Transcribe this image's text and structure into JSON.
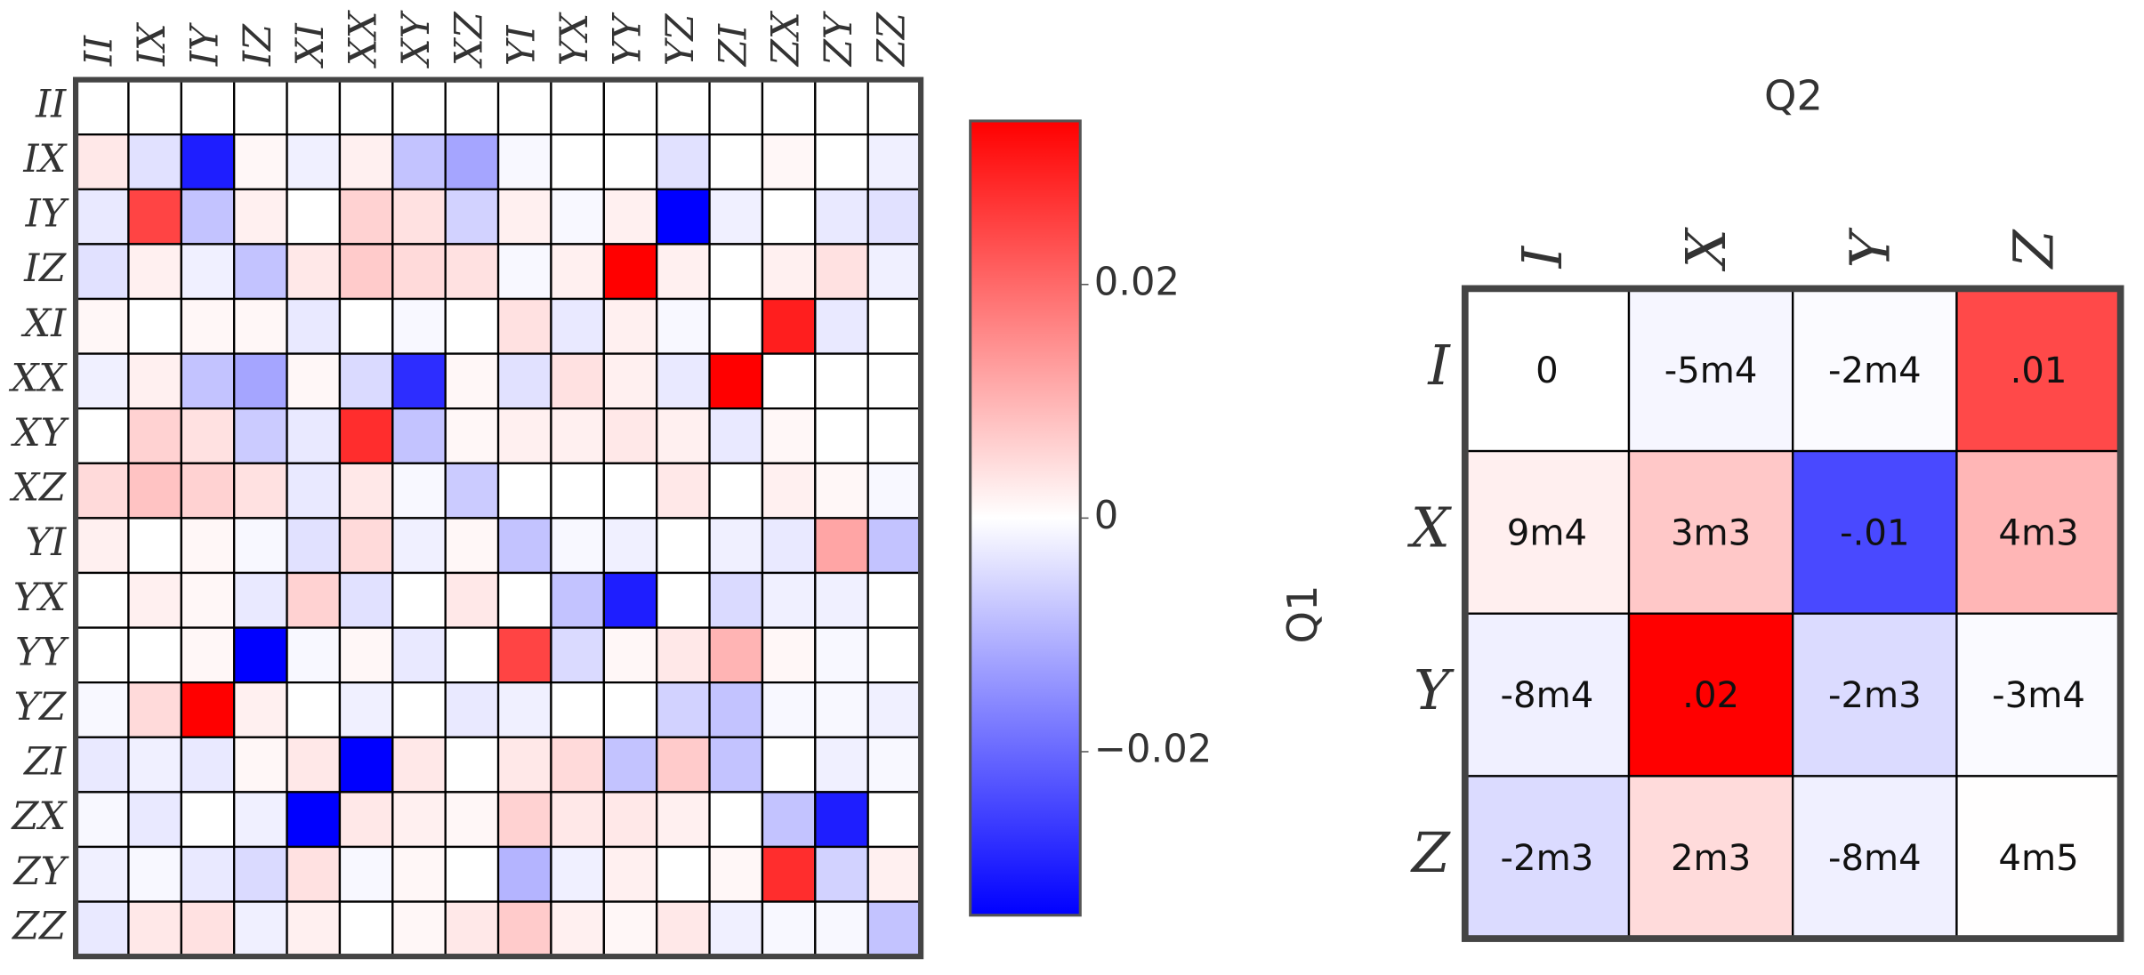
{
  "chart_data": [
    {
      "type": "heatmap",
      "x_categories": [
        "II",
        "IX",
        "IY",
        "IZ",
        "XI",
        "XX",
        "XY",
        "XZ",
        "YI",
        "YX",
        "YY",
        "YZ",
        "ZI",
        "ZX",
        "ZY",
        "ZZ"
      ],
      "y_categories": [
        "II",
        "IX",
        "IY",
        "IZ",
        "XI",
        "XX",
        "XY",
        "XZ",
        "YI",
        "YX",
        "YY",
        "YZ",
        "ZI",
        "ZX",
        "ZY",
        "ZZ"
      ],
      "values": [
        [
          0,
          0,
          0,
          0,
          0,
          0,
          0,
          0,
          0,
          0,
          0,
          0,
          0,
          0,
          0,
          0
        ],
        [
          0.003,
          -0.004,
          -0.03,
          0.001,
          -0.002,
          0.002,
          -0.008,
          -0.012,
          -0.001,
          0,
          0,
          -0.004,
          0,
          0.001,
          0,
          -0.002
        ],
        [
          -0.003,
          0.025,
          -0.008,
          0.002,
          0,
          0.006,
          0.004,
          -0.006,
          0.002,
          -0.001,
          0.002,
          -0.034,
          -0.002,
          0,
          -0.003,
          -0.004
        ],
        [
          -0.004,
          0.002,
          -0.002,
          -0.008,
          0.003,
          0.007,
          0.005,
          0.004,
          -0.001,
          0.002,
          0.034,
          0.002,
          0,
          0.002,
          0.004,
          -0.002
        ],
        [
          0.001,
          0,
          0.001,
          0.001,
          -0.003,
          0,
          -0.001,
          0,
          0.004,
          -0.003,
          0.002,
          -0.001,
          0,
          0.03,
          -0.003,
          0
        ],
        [
          -0.002,
          0.002,
          -0.008,
          -0.012,
          0.001,
          -0.005,
          -0.028,
          0.001,
          -0.004,
          0.004,
          0.002,
          -0.003,
          0.034,
          0,
          0,
          0
        ],
        [
          0,
          0.006,
          0.004,
          -0.007,
          -0.003,
          0.028,
          -0.008,
          0.001,
          0.002,
          0.002,
          0.003,
          0.002,
          -0.003,
          0.001,
          0,
          0
        ],
        [
          0.005,
          0.008,
          0.006,
          0.004,
          -0.003,
          0.003,
          -0.001,
          -0.007,
          0,
          0,
          0,
          0.003,
          0,
          0.002,
          0.001,
          -0.001
        ],
        [
          0.002,
          0,
          0.001,
          -0.001,
          -0.004,
          0.005,
          -0.002,
          0.001,
          -0.008,
          -0.001,
          -0.002,
          0,
          -0.002,
          -0.003,
          0.012,
          -0.008
        ],
        [
          0,
          0.002,
          0.001,
          -0.003,
          0.006,
          -0.004,
          0,
          0.003,
          0,
          -0.008,
          -0.03,
          0,
          -0.005,
          -0.002,
          -0.002,
          0
        ],
        [
          0,
          0,
          0.001,
          -0.034,
          -0.001,
          0.001,
          -0.003,
          0,
          0.025,
          -0.005,
          0.001,
          0.003,
          0.01,
          0.001,
          -0.001,
          0
        ],
        [
          -0.001,
          0.005,
          0.034,
          0.002,
          0,
          -0.002,
          0,
          -0.003,
          -0.002,
          0,
          0,
          -0.006,
          -0.008,
          -0.001,
          -0.001,
          -0.002
        ],
        [
          -0.003,
          -0.002,
          -0.003,
          0.001,
          0.003,
          -0.034,
          0.003,
          0,
          0.003,
          0.005,
          -0.008,
          0.007,
          -0.008,
          0,
          -0.002,
          -0.001
        ],
        [
          -0.001,
          -0.003,
          0,
          -0.002,
          -0.034,
          0.003,
          0.002,
          0.001,
          0.006,
          0.003,
          0.003,
          0.002,
          0,
          -0.008,
          -0.03,
          0
        ],
        [
          -0.002,
          -0.001,
          -0.003,
          -0.005,
          0.004,
          -0.001,
          0.001,
          0,
          -0.01,
          -0.002,
          0.002,
          0,
          0.001,
          0.028,
          -0.006,
          0.002
        ],
        [
          -0.003,
          0.003,
          0.004,
          -0.002,
          0.002,
          0,
          0.001,
          0.003,
          0.007,
          0.002,
          0.001,
          0.003,
          -0.002,
          -0.001,
          -0.001,
          -0.008
        ]
      ],
      "colorscale": [
        "#0000ff",
        "#ffffff",
        "#ff0000"
      ],
      "clim": [
        -0.034,
        0.034
      ],
      "colorbar": true,
      "cticks": [
        0.02,
        0,
        {
          "value": -0.02,
          "label": "−0.02"
        }
      ]
    },
    {
      "type": "heatmap",
      "x_label": "Q2",
      "y_label": "Q1",
      "x_categories": [
        "I",
        "X",
        "Y",
        "Z"
      ],
      "y_categories": [
        "I",
        "X",
        "Y",
        "Z"
      ],
      "values": [
        [
          0,
          -0.0005,
          -0.0002,
          0.01
        ],
        [
          0.0009,
          0.003,
          -0.01,
          0.004
        ],
        [
          -0.0008,
          0.02,
          -0.002,
          -0.0003
        ],
        [
          -0.002,
          0.002,
          -0.0008,
          4e-05
        ]
      ],
      "value_labels": [
        [
          "0",
          "-5m4",
          "-2m4",
          ".01"
        ],
        [
          "9m4",
          "3m3",
          "-.01",
          "4m3"
        ],
        [
          "-8m4",
          ".02",
          "-2m3",
          "-3m4"
        ],
        [
          "-2m3",
          "2m3",
          "-8m4",
          "4m5"
        ]
      ],
      "colorscale": [
        "#0000ff",
        "#ffffff",
        "#ff0000"
      ],
      "clim": [
        -0.014,
        0.014
      ],
      "colorbar": false
    }
  ]
}
